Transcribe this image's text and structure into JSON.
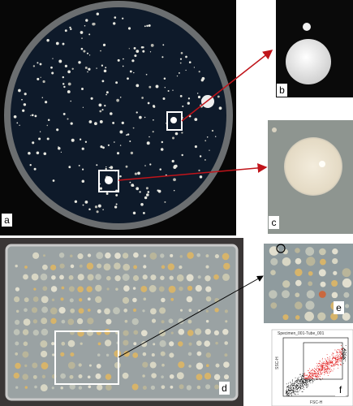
{
  "panels": [
    {
      "label": "a"
    },
    {
      "label": "b"
    },
    {
      "label": "c"
    },
    {
      "label": "d"
    },
    {
      "label": "e"
    },
    {
      "label": "f"
    }
  ],
  "cytometry": {
    "title": "Specimen_001-Tube_001",
    "y_label": "SSC-H",
    "x_label": "FSC-H"
  }
}
